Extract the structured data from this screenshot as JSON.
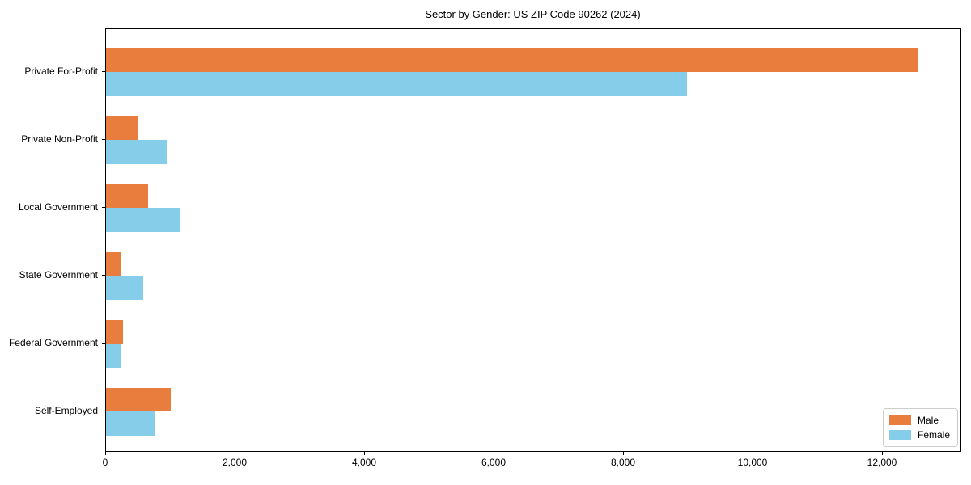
{
  "chart_data": {
    "type": "bar",
    "orientation": "horizontal",
    "title": "Sector by Gender: US ZIP Code 90262 (2024)",
    "categories": [
      "Private For-Profit",
      "Private Non-Profit",
      "Local Government",
      "State Government",
      "Federal Government",
      "Self-Employed"
    ],
    "series": [
      {
        "name": "Male",
        "color": "#e87d3e",
        "values": [
          12550,
          495,
          645,
          230,
          265,
          1000
        ]
      },
      {
        "name": "Female",
        "color": "#85cde8",
        "values": [
          8970,
          950,
          1155,
          570,
          220,
          760
        ]
      }
    ],
    "xlabel": "",
    "ylabel": "",
    "xlim": [
      0,
      13200
    ],
    "xticks": [
      0,
      2000,
      4000,
      6000,
      8000,
      10000,
      12000
    ],
    "xtick_labels": [
      "0",
      "2,000",
      "4,000",
      "6,000",
      "8,000",
      "10,000",
      "12,000"
    ],
    "grid": false,
    "legend_position": "lower right",
    "background_color": "#ffffff",
    "axis_color": "#000000"
  }
}
